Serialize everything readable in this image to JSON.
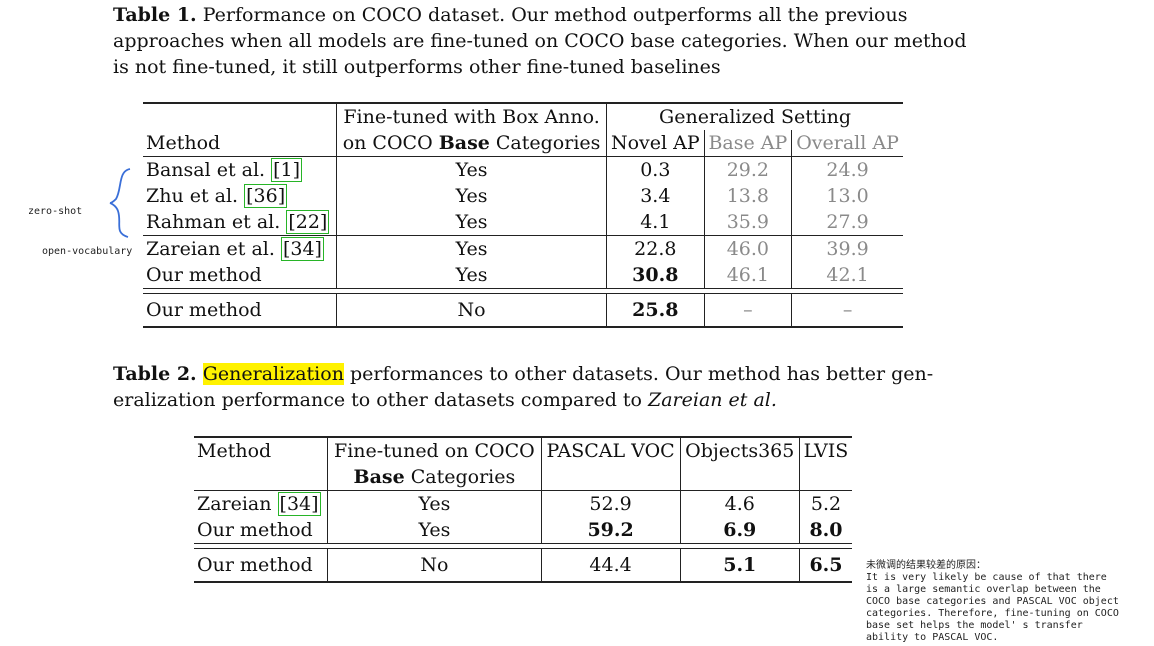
{
  "table1": {
    "caption_label": "Table 1.",
    "caption_line1": " Performance on COCO dataset. Our method outperforms all the previous",
    "caption_line2": "approaches when all models are fine-tuned on COCO base categories. When our method",
    "caption_line3": "is not fine-tuned, it still outperforms other fine-tuned baselines",
    "headers": {
      "method": "Method",
      "finetuned_line1": "Fine-tuned with Box Anno.",
      "finetuned_line2_pre": "on COCO ",
      "finetuned_line2_bold": "Base",
      "finetuned_line2_post": " Categories",
      "group": "Generalized Setting",
      "novel": "Novel AP",
      "base": "Base AP",
      "overall": "Overall AP"
    },
    "rows": [
      {
        "method": "Bansal et al. ",
        "ref": "[1]",
        "finetuned": "Yes",
        "novel": "0.3",
        "base": "29.2",
        "overall": "24.9"
      },
      {
        "method": "Zhu et al. ",
        "ref": "[36]",
        "finetuned": "Yes",
        "novel": "3.4",
        "base": "13.8",
        "overall": "13.0"
      },
      {
        "method": "Rahman et al. ",
        "ref": "[22]",
        "finetuned": "Yes",
        "novel": "4.1",
        "base": "35.9",
        "overall": "27.9"
      },
      {
        "method": "Zareian et al. ",
        "ref": "[34]",
        "finetuned": "Yes",
        "novel": "22.8",
        "base": "46.0",
        "overall": "39.9"
      },
      {
        "method": "Our method",
        "ref": "",
        "finetuned": "Yes",
        "novel": "30.8",
        "base": "46.1",
        "overall": "42.1"
      }
    ],
    "last_row": {
      "method": "Our method",
      "finetuned": "No",
      "novel": "25.8",
      "base": "–",
      "overall": "–"
    }
  },
  "table2": {
    "caption_label": "Table 2.",
    "caption_highlight": "Generalization",
    "caption_line1_rest": " performances to other datasets. Our method has better gen-",
    "caption_line2_pre": "eralization performance to other datasets compared to ",
    "caption_line2_italic": "Zareian et al.",
    "headers": {
      "method": "Method",
      "finetuned_line1": "Fine-tuned on COCO",
      "finetuned_line2_bold": "Base",
      "finetuned_line2_post": " Categories",
      "voc": "PASCAL VOC",
      "objects365": "Objects365",
      "lvis": "LVIS"
    },
    "rows": [
      {
        "method": "Zareian ",
        "ref": "[34]",
        "finetuned": "Yes",
        "voc": "52.9",
        "objects365": "4.6",
        "lvis": "5.2"
      },
      {
        "method": "Our method",
        "ref": "",
        "finetuned": "Yes",
        "voc": "59.2",
        "objects365": "6.9",
        "lvis": "8.0"
      }
    ],
    "last_row": {
      "method": "Our method",
      "finetuned": "No",
      "voc": "44.4",
      "objects365": "5.1",
      "lvis": "6.5"
    }
  },
  "annotations": {
    "zero_shot": "zero-shot",
    "open_vocab": "open-vocabulary",
    "note_lines": [
      "未微调的结果较差的原因：",
      "It is very likely be  cause of that there",
      "is a large semantic overlap between the",
      "COCO base categories and PASCAL VOC object",
      "categories. Therefore, fine-tuning on COCO",
      "base set helps the model' s transfer",
      "ability to PASCAL VOC."
    ]
  }
}
